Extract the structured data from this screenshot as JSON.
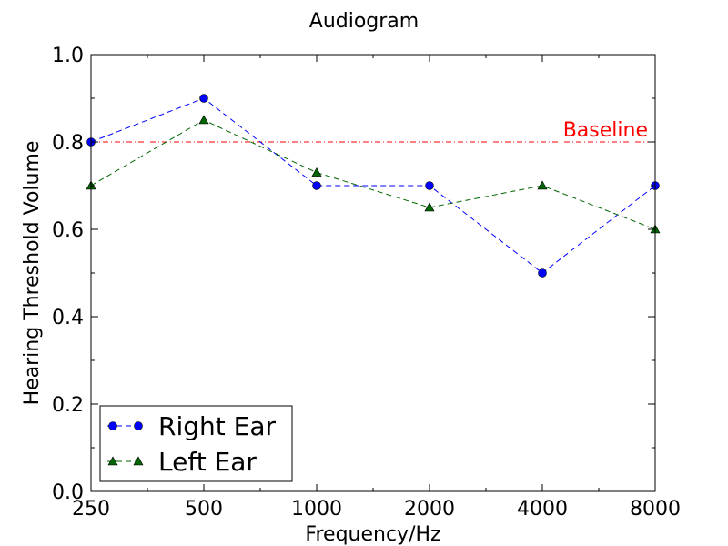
{
  "chart_data": {
    "type": "line",
    "title": "Audiogram",
    "xlabel": "Frequency/Hz",
    "ylabel": "Hearing Threshold Volume",
    "categories": [
      "250",
      "500",
      "1000",
      "2000",
      "4000",
      "8000"
    ],
    "ylim": [
      0,
      1.0
    ],
    "yticks": [
      "0.0",
      "0.2",
      "0.4",
      "0.6",
      "0.8",
      "1.0"
    ],
    "series": [
      {
        "name": "Right Ear",
        "values": [
          0.8,
          0.9,
          0.7,
          0.7,
          0.5,
          0.7
        ],
        "color": "#0000ff",
        "marker": "circle",
        "linestyle": "dashed"
      },
      {
        "name": "Left Ear",
        "values": [
          0.7,
          0.85,
          0.73,
          0.65,
          0.7,
          0.6
        ],
        "color": "#006400",
        "marker": "triangle",
        "linestyle": "dashed"
      }
    ],
    "reference_line": {
      "label": "Baseline",
      "value": 0.8,
      "color": "#ff0000",
      "linestyle": "dashdot"
    },
    "legend": {
      "placement": "lower-left"
    },
    "grid": false
  }
}
